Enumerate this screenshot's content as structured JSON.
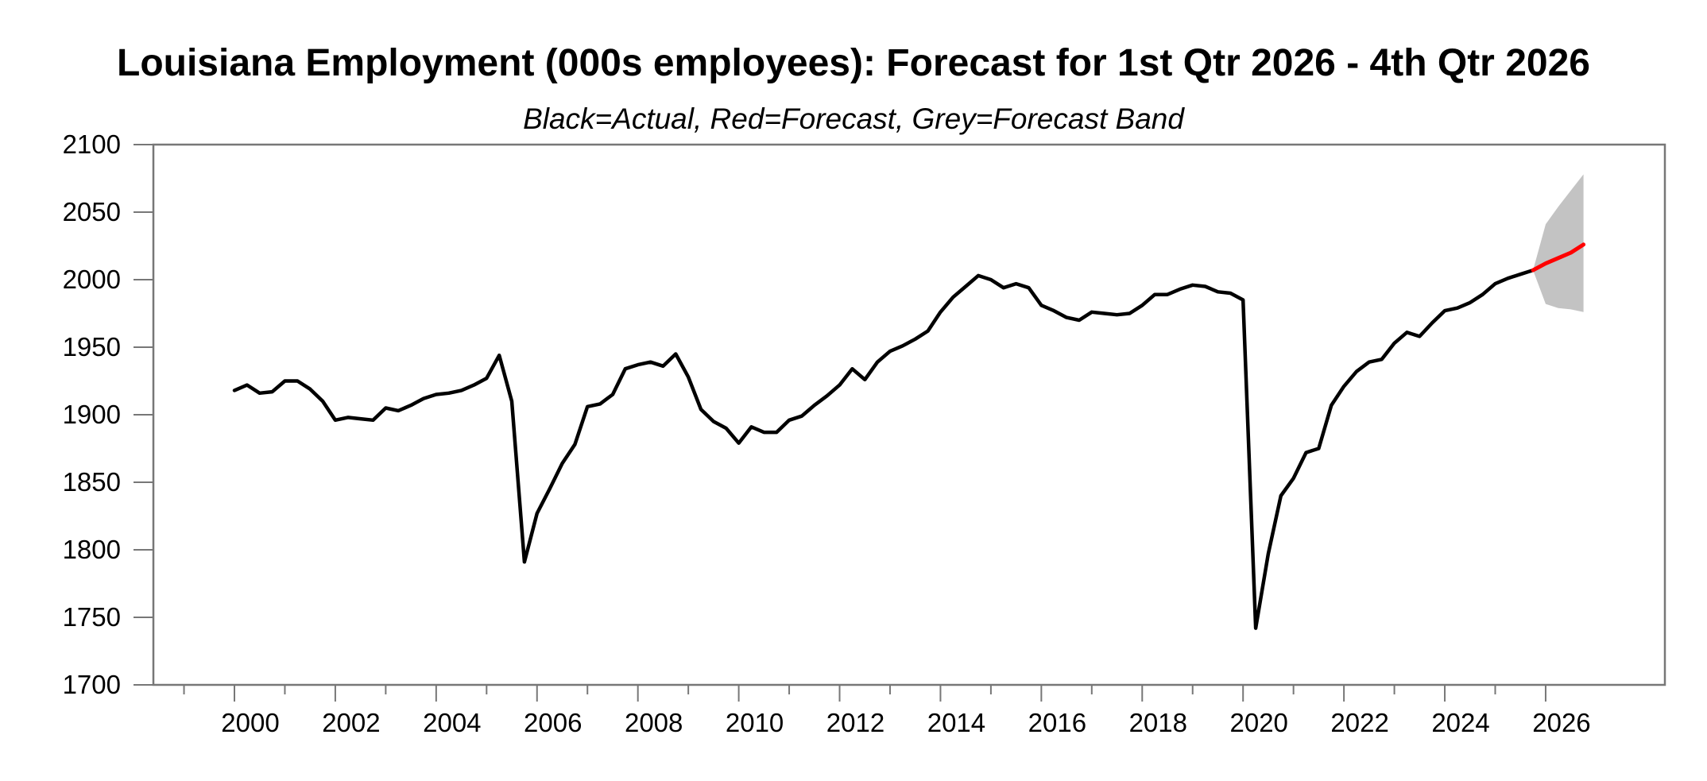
{
  "header": {
    "title": "Louisiana Employment (000s employees): Forecast for 1st Qtr 2026 - 4th Qtr 2026",
    "subtitle": "Black=Actual, Red=Forecast, Grey=Forecast Band"
  },
  "chart_data": {
    "type": "line",
    "title": "Louisiana Employment (000s employees): Forecast for 1st Qtr 2026 - 4th Qtr 2026",
    "subtitle": "Black=Actual, Red=Forecast, Grey=Forecast Band",
    "units": "thousands of employees",
    "frequency": "quarterly",
    "legend": [
      {
        "name": "Actual",
        "color": "#000000"
      },
      {
        "name": "Forecast",
        "color": "#ff0000"
      },
      {
        "name": "Forecast Band",
        "color": "#c3c3c3"
      }
    ],
    "ylim": [
      1700,
      2100
    ],
    "y_ticks": [
      1700,
      1750,
      1800,
      1850,
      1900,
      1950,
      2000,
      2050,
      2100
    ],
    "x_major_tick_years": [
      2000,
      2002,
      2004,
      2006,
      2008,
      2010,
      2012,
      2014,
      2016,
      2018,
      2020,
      2022,
      2024,
      2026
    ],
    "x_minor_tick_years": [
      1999,
      2001,
      2003,
      2005,
      2007,
      2009,
      2011,
      2013,
      2015,
      2017,
      2019,
      2021,
      2023,
      2025
    ],
    "x_range_years": [
      1998.4,
      2028.4
    ],
    "grid": "off",
    "legend_position": "subtitle",
    "actual": {
      "name": "Actual",
      "start_period": "2000 Q1",
      "end_period": "2025 Q4",
      "values": [
        1918,
        1922,
        1916,
        1917,
        1925,
        1925,
        1919,
        1910,
        1896,
        1898,
        1897,
        1896,
        1905,
        1903,
        1907,
        1912,
        1915,
        1916,
        1918,
        1922,
        1927,
        1944,
        1910,
        1791,
        1827,
        1845,
        1864,
        1878,
        1906,
        1908,
        1915,
        1934,
        1937,
        1939,
        1936,
        1945,
        1928,
        1904,
        1895,
        1890,
        1879,
        1891,
        1887,
        1887,
        1896,
        1899,
        1907,
        1914,
        1922,
        1934,
        1926,
        1939,
        1947,
        1951,
        1956,
        1962,
        1976,
        1987,
        1995,
        2003,
        2000,
        1994,
        1997,
        1994,
        1981,
        1977,
        1972,
        1970,
        1976,
        1975,
        1974,
        1975,
        1981,
        1989,
        1989,
        1993,
        1996,
        1995,
        1991,
        1990,
        1985,
        1742,
        1797,
        1840,
        1853,
        1872,
        1875,
        1907,
        1921,
        1932,
        1939,
        1941,
        1953,
        1961,
        1958,
        1968,
        1977,
        1979,
        1983,
        1989,
        1997,
        2001,
        2004,
        2007
      ]
    },
    "forecast": {
      "name": "Forecast",
      "start_period": "2026 Q1",
      "end_period": "2026 Q4",
      "values": [
        2012,
        2016,
        2020,
        2026
      ],
      "band_lower": [
        1982,
        1979,
        1978,
        1976
      ],
      "band_upper": [
        2041,
        2054,
        2066,
        2078
      ]
    },
    "colors": {
      "actual_line": "#000000",
      "forecast_line": "#ff0000",
      "forecast_band": "#c3c3c3",
      "axis": "#777777",
      "text": "#000000",
      "background": "#ffffff"
    }
  }
}
